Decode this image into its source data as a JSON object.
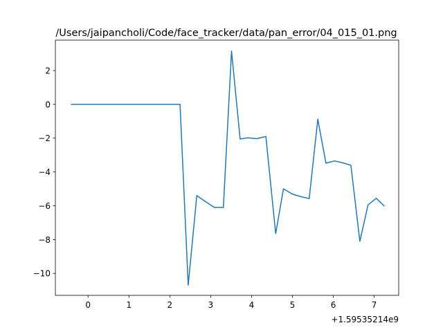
{
  "chart_data": {
    "type": "line",
    "title": "/Users/jaipancholi/Code/face_tracker/data/pan_error/04_015_01.png",
    "xlabel": "",
    "ylabel": "",
    "x_offset_label": "+1.59535214e9",
    "xlim": [
      -0.8,
      7.6
    ],
    "ylim": [
      -11.3,
      3.8
    ],
    "x_ticks": [
      0,
      1,
      2,
      3,
      4,
      5,
      6,
      7
    ],
    "x_tick_labels": [
      "0",
      "1",
      "2",
      "3",
      "4",
      "5",
      "6",
      "7"
    ],
    "y_ticks": [
      2,
      0,
      -2,
      -4,
      -6,
      -8,
      -10
    ],
    "y_tick_labels": [
      "2",
      "0",
      "−2",
      "−4",
      "−6",
      "−8",
      "−10"
    ],
    "grid": false,
    "line_color": "#1f77b4",
    "series": [
      {
        "x": [
          -0.42,
          2.25,
          2.45,
          2.66,
          2.87,
          3.09,
          3.31,
          3.51,
          3.72,
          3.91,
          4.13,
          4.35,
          4.59,
          4.78,
          4.99,
          5.19,
          5.41,
          5.62,
          5.82,
          6.03,
          6.23,
          6.43,
          6.65,
          6.85,
          7.05,
          7.25
        ],
        "y": [
          0,
          0,
          -10.7,
          -5.4,
          -5.75,
          -6.1,
          -6.1,
          3.15,
          -2.05,
          -1.98,
          -2.03,
          -1.9,
          -7.65,
          -5.0,
          -5.3,
          -5.45,
          -5.58,
          -0.88,
          -3.48,
          -3.35,
          -3.46,
          -3.6,
          -8.1,
          -5.95,
          -5.56,
          -6.02
        ]
      }
    ]
  }
}
